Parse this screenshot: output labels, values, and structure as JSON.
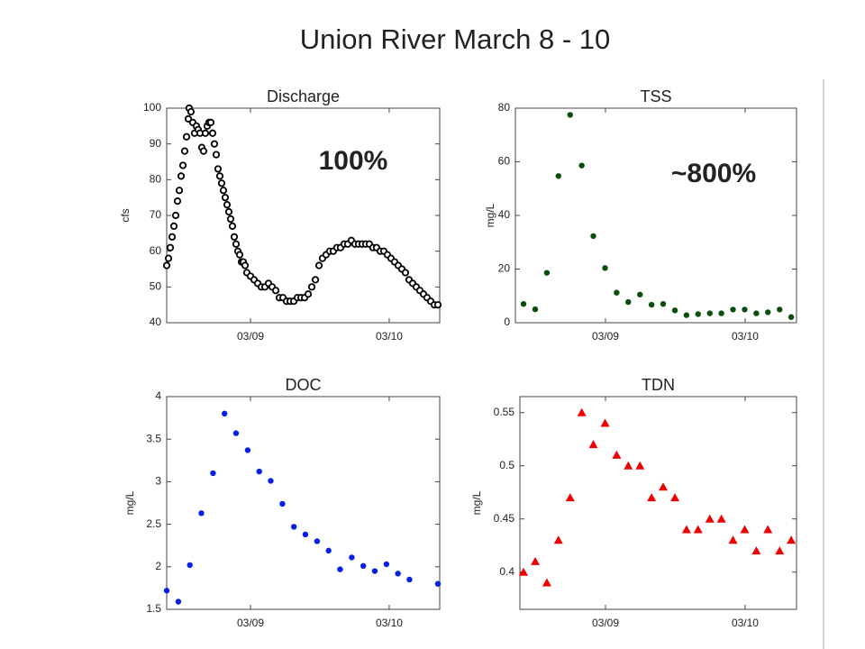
{
  "title": "Union River March 8  - 10",
  "chart_data": [
    {
      "type": "scatter",
      "title": "Discharge",
      "ylabel": "cfs",
      "marker": "circle-open",
      "color": "#000000",
      "annotation": "100%",
      "annotation_color": "#ee1111",
      "xlim": [
        8.396,
        10.364
      ],
      "xticks": [
        {
          "value": 9,
          "label": "03/09"
        },
        {
          "value": 10,
          "label": "03/10"
        }
      ],
      "ylim": [
        40,
        100
      ],
      "yticks": [
        40,
        50,
        60,
        70,
        80,
        90,
        100
      ],
      "x": [
        8.396,
        8.409,
        8.422,
        8.435,
        8.448,
        8.461,
        8.474,
        8.487,
        8.5,
        8.513,
        8.526,
        8.539,
        8.552,
        8.558,
        8.571,
        8.584,
        8.597,
        8.61,
        8.623,
        8.636,
        8.649,
        8.662,
        8.675,
        8.688,
        8.701,
        8.714,
        8.727,
        8.74,
        8.753,
        8.766,
        8.779,
        8.792,
        8.805,
        8.818,
        8.831,
        8.844,
        8.857,
        8.87,
        8.883,
        8.896,
        8.909,
        8.922,
        8.935,
        8.948,
        8.961,
        8.974,
        9.0,
        9.026,
        9.052,
        9.078,
        9.104,
        9.13,
        9.156,
        9.182,
        9.208,
        9.234,
        9.26,
        9.286,
        9.312,
        9.338,
        9.364,
        9.39,
        9.416,
        9.442,
        9.468,
        9.494,
        9.519,
        9.545,
        9.571,
        9.597,
        9.623,
        9.649,
        9.675,
        9.701,
        9.727,
        9.753,
        9.779,
        9.805,
        9.831,
        9.857,
        9.883,
        9.909,
        9.935,
        9.961,
        9.987,
        10.013,
        10.039,
        10.065,
        10.091,
        10.117,
        10.143,
        10.169,
        10.195,
        10.221,
        10.247,
        10.273,
        10.299,
        10.325,
        10.351
      ],
      "values": [
        56,
        58,
        61,
        64,
        67,
        70,
        74,
        77,
        81,
        84,
        88,
        92,
        97,
        100,
        99,
        96,
        93,
        95,
        94,
        93,
        89,
        88,
        93,
        95,
        96,
        96,
        93,
        90,
        87,
        83,
        81,
        79,
        77,
        75,
        73,
        71,
        69,
        67,
        64,
        62,
        60,
        59,
        57,
        57,
        56,
        54,
        53,
        52,
        51,
        50,
        50,
        51,
        50,
        49,
        47,
        47,
        46,
        46,
        46,
        47,
        47,
        47,
        48,
        50,
        52,
        56,
        58,
        59,
        60,
        60,
        61,
        61,
        62,
        62,
        63,
        62,
        62,
        62,
        62,
        62,
        61,
        61,
        60,
        60,
        59,
        58,
        57,
        56,
        55,
        54,
        52,
        51,
        50,
        49,
        48,
        47,
        46,
        45,
        45
      ]
    },
    {
      "type": "scatter",
      "title": "TSS",
      "ylabel": "mg/L",
      "marker": "dot",
      "color": "#0b4d0b",
      "annotation": "~800%",
      "annotation_color": "#ee1111",
      "xlim": [
        8.355,
        10.368
      ],
      "xticks": [
        {
          "value": 9,
          "label": "03/09"
        },
        {
          "value": 10,
          "label": "03/10"
        }
      ],
      "ylim": [
        0,
        80
      ],
      "yticks": [
        0,
        20,
        40,
        60,
        80
      ],
      "x": [
        8.413,
        8.497,
        8.58,
        8.663,
        8.747,
        8.83,
        8.913,
        8.997,
        9.08,
        9.163,
        9.247,
        9.33,
        9.413,
        9.497,
        9.58,
        9.663,
        9.747,
        9.83,
        9.913,
        9.997,
        10.08,
        10.163,
        10.247,
        10.33
      ],
      "values": [
        7,
        5,
        18.6,
        54.7,
        77.5,
        58.6,
        32.3,
        20.4,
        11.2,
        7.7,
        10.5,
        6.7,
        7,
        4.6,
        2.8,
        3.2,
        3.5,
        3.5,
        4.9,
        4.9,
        3.5,
        3.9,
        4.9,
        2.1
      ]
    },
    {
      "type": "scatter",
      "title": "DOC",
      "ylabel": "mg/L",
      "marker": "dot",
      "color": "#0a1fe6",
      "xlim": [
        8.396,
        10.364
      ],
      "xticks": [
        {
          "value": 9,
          "label": "03/09"
        },
        {
          "value": 10,
          "label": "03/10"
        }
      ],
      "ylim": [
        1.5,
        4
      ],
      "yticks": [
        1.5,
        2,
        2.5,
        3,
        3.5,
        4
      ],
      "x": [
        8.396,
        8.48,
        8.563,
        8.646,
        8.73,
        8.813,
        8.896,
        8.98,
        9.063,
        9.146,
        9.23,
        9.313,
        9.396,
        9.48,
        9.563,
        9.646,
        9.73,
        9.813,
        9.896,
        9.98,
        10.063,
        10.146,
        10.351
      ],
      "values": [
        1.72,
        1.59,
        2.02,
        2.63,
        3.1,
        3.8,
        3.57,
        3.37,
        3.12,
        3.01,
        2.74,
        2.47,
        2.38,
        2.3,
        2.19,
        1.97,
        2.11,
        2.01,
        1.95,
        2.03,
        1.92,
        1.85,
        1.8
      ]
    },
    {
      "type": "scatter",
      "title": "TDN",
      "ylabel": "mg/L",
      "marker": "triangle",
      "color": "#ee0000",
      "xlim": [
        8.387,
        10.368
      ],
      "xticks": [
        {
          "value": 9,
          "label": "03/09"
        },
        {
          "value": 10,
          "label": "03/10"
        }
      ],
      "ylim": [
        0.365,
        0.565
      ],
      "yticks": [
        0.4,
        0.45,
        0.5,
        0.55
      ],
      "x": [
        8.413,
        8.497,
        8.58,
        8.663,
        8.747,
        8.83,
        8.913,
        8.997,
        9.08,
        9.163,
        9.247,
        9.33,
        9.413,
        9.497,
        9.58,
        9.663,
        9.747,
        9.83,
        9.913,
        9.997,
        10.08,
        10.163,
        10.247,
        10.33
      ],
      "values": [
        0.4,
        0.41,
        0.39,
        0.43,
        0.47,
        0.55,
        0.52,
        0.54,
        0.51,
        0.5,
        0.5,
        0.47,
        0.48,
        0.47,
        0.44,
        0.44,
        0.45,
        0.45,
        0.43,
        0.44,
        0.42,
        0.44,
        0.42,
        0.43
      ]
    }
  ]
}
